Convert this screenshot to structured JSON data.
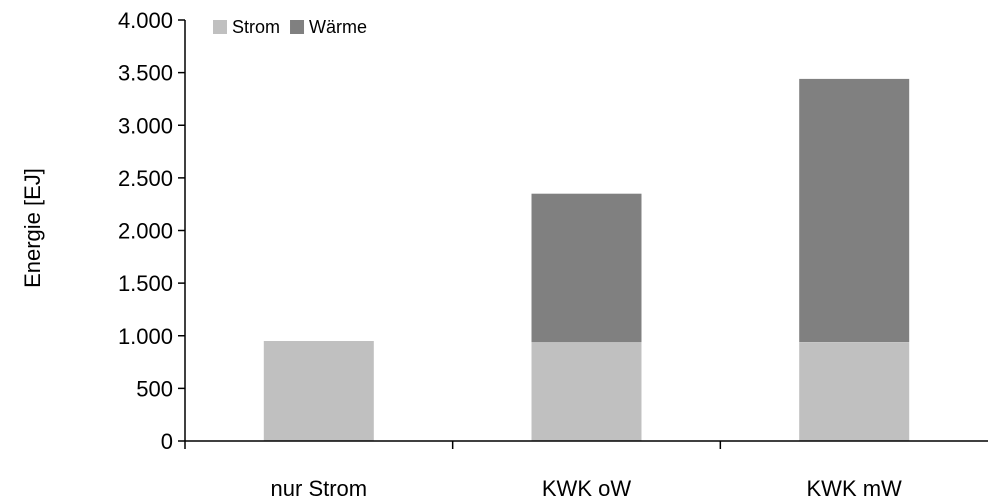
{
  "chart_data": {
    "type": "bar",
    "stacked": true,
    "title": "",
    "xlabel": "",
    "ylabel": "Energie [EJ]",
    "ylim": [
      0,
      4000
    ],
    "yticks": [
      0,
      500,
      1000,
      1500,
      2000,
      2500,
      3000,
      3500,
      4000
    ],
    "ytick_labels": [
      "0",
      "500",
      "1.000",
      "1.500",
      "2.000",
      "2.500",
      "3.000",
      "3.500",
      "4.000"
    ],
    "categories": [
      "nur Strom",
      "KWK oW",
      "KWK mW"
    ],
    "series": [
      {
        "name": "Strom",
        "values": [
          950,
          940,
          940
        ],
        "color": "#c0c0c0"
      },
      {
        "name": "Wärme",
        "values": [
          0,
          1410,
          2500
        ],
        "color": "#808080"
      }
    ],
    "legend": {
      "position": "top-left"
    },
    "grid": false
  }
}
